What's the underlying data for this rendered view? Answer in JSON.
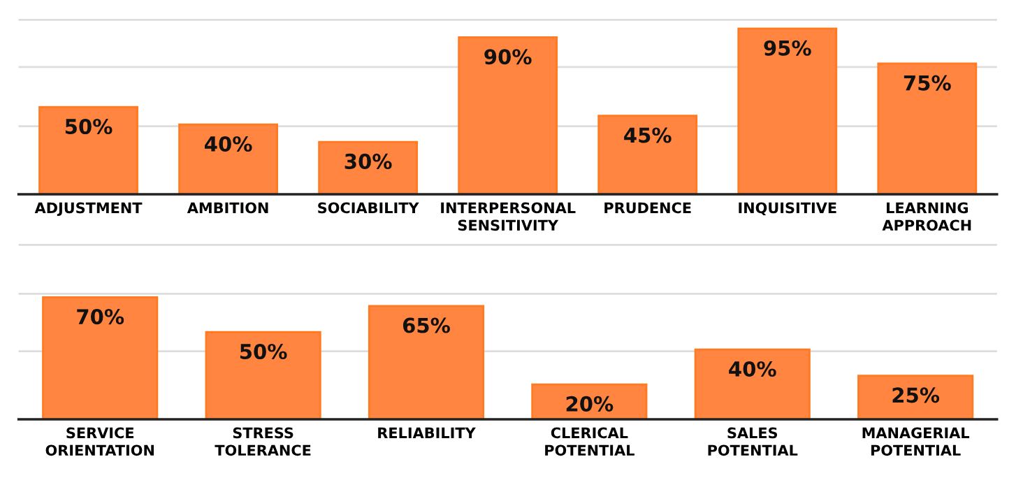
{
  "chart_data": [
    {
      "type": "bar",
      "categories": [
        "ADJUSTMENT",
        "AMBITION",
        "SOCIABILITY",
        "INTERPERSONAL\nSENSITIVITY",
        "PRUDENCE",
        "INQUISITIVE",
        "LEARNING\nAPPROACH"
      ],
      "values": [
        50,
        40,
        30,
        90,
        45,
        95,
        75
      ],
      "value_labels": [
        "50%",
        "40%",
        "30%",
        "90%",
        "45%",
        "95%",
        "75%"
      ],
      "color": "#ff8540",
      "ref_lines": [
        {
          "axis": "y",
          "value": 39,
          "color": "#dddddd"
        },
        {
          "axis": "y",
          "value": 73,
          "color": "#dddddd"
        },
        {
          "axis": "y",
          "value": 100,
          "color": "#dddddd"
        }
      ],
      "tick_labels": "x"
    },
    {
      "type": "bar",
      "categories": [
        "SERVICE\nORIENTATION",
        "STRESS\nTOLERANCE",
        "RELIABILITY",
        "CLERICAL\nPOTENTIAL",
        "SALES\nPOTENTIAL",
        "MANAGERIAL\nPOTENTIAL"
      ],
      "values": [
        70,
        50,
        65,
        20,
        40,
        25
      ],
      "value_labels": [
        "70%",
        "50%",
        "65%",
        "20%",
        "40%",
        "25%"
      ],
      "color": "#ff8540",
      "ref_lines": [
        {
          "axis": "y",
          "value": 39,
          "color": "#dddddd"
        },
        {
          "axis": "y",
          "value": 72,
          "color": "#dddddd"
        },
        {
          "axis": "y",
          "value": 100,
          "color": "#dddddd"
        }
      ],
      "tick_labels": "x"
    }
  ]
}
